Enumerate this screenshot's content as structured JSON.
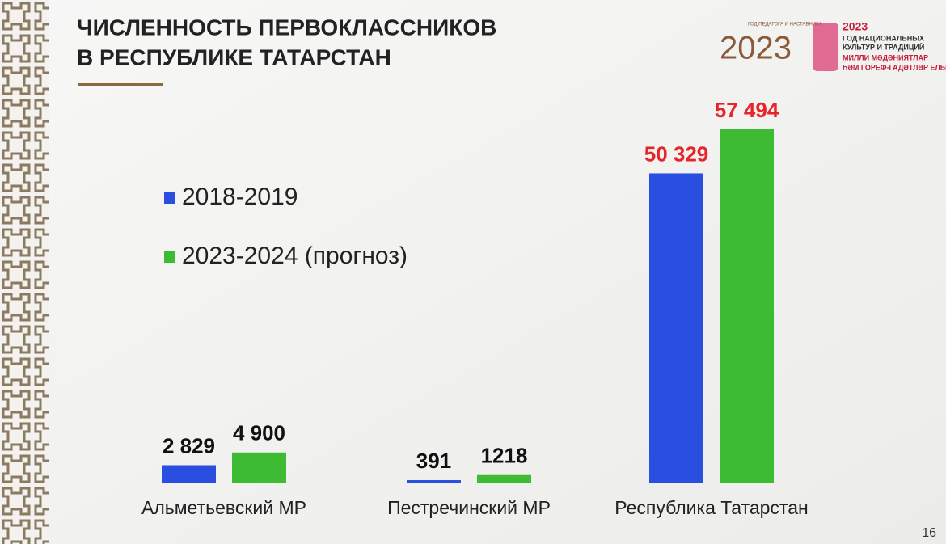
{
  "chart_data": {
    "type": "bar",
    "title": [
      "ЧИСЛЕННОСТЬ ПЕРВОКЛАССНИКОВ",
      "В РЕСПУБЛИКЕ ТАТАРСТАН"
    ],
    "categories": [
      "Альметьевский МР",
      "Пестречинский МР",
      "Республика Татарстан"
    ],
    "series": [
      {
        "name": "2018-2019",
        "color": "#2a4fe0",
        "values": [
          2829,
          391,
          50329
        ],
        "value_labels": [
          "2 829",
          "391",
          "50 329"
        ]
      },
      {
        "name": "2023-2024 (прогноз)",
        "color": "#3dbb33",
        "values": [
          4900,
          1218,
          57494
        ],
        "value_labels": [
          "4 900",
          "1218",
          "57 494"
        ]
      }
    ],
    "value_label_colors": [
      "#111111",
      "#111111",
      "#e8242b"
    ]
  },
  "logos": {
    "left": [
      "2023",
      "ГОД ПЕДАГОГА И НАСТАВНИКА"
    ],
    "right": [
      "2023",
      "ГОД НАЦИОНАЛЬНЫХ",
      "КУЛЬТУР И ТРАДИЦИЙ",
      "МИЛЛИ МӘДӘНИЯТЛАР",
      "ҺӘМ ГОРЕФ-ГАДӘТЛӘР ЕЛЫ"
    ]
  },
  "page_number": "16"
}
